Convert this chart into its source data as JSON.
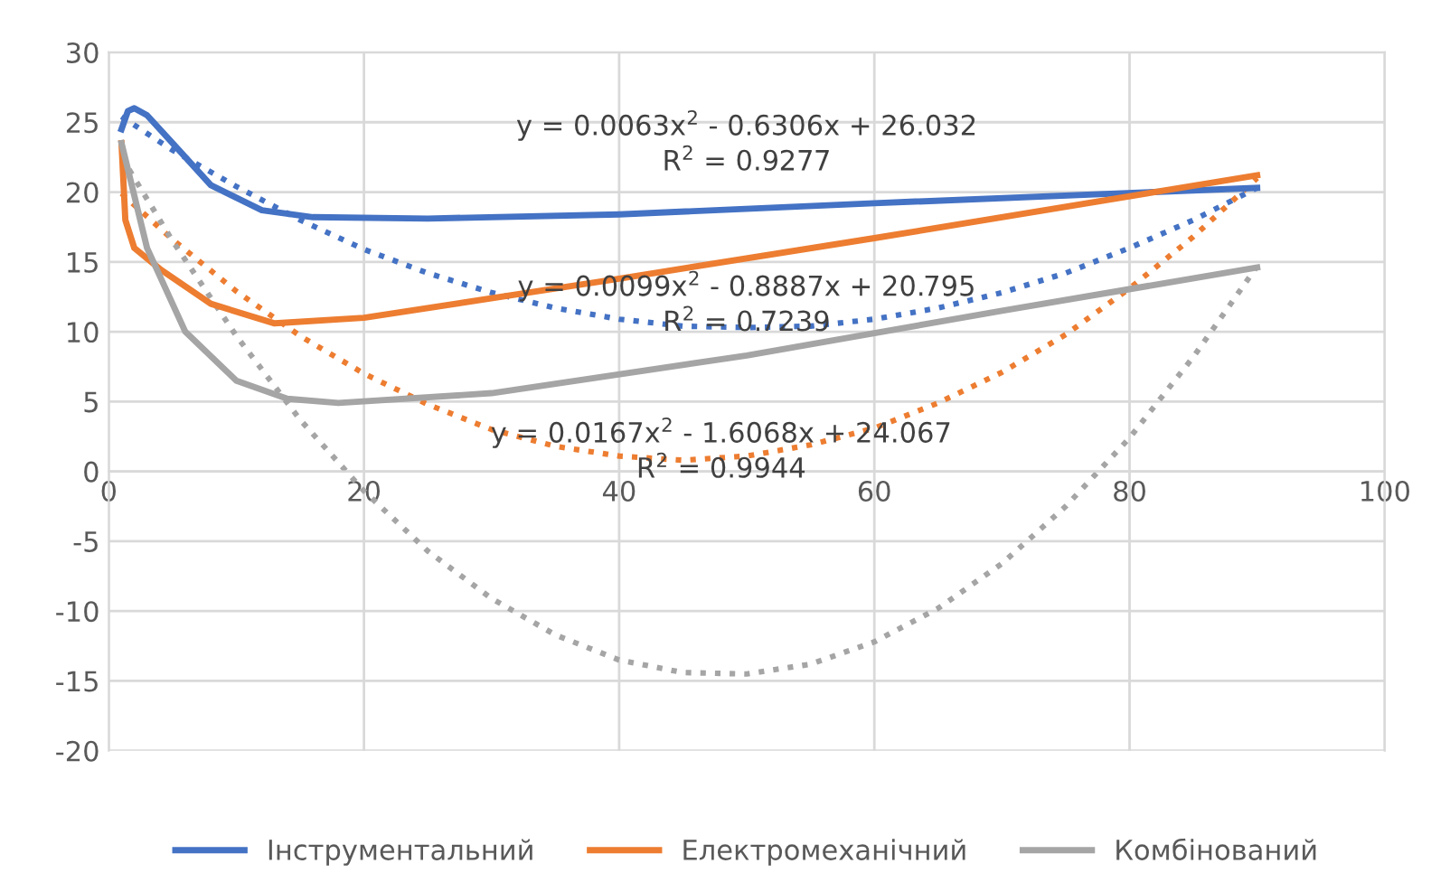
{
  "chart_data": {
    "type": "line",
    "xlim": [
      0,
      100
    ],
    "xticks": [
      0,
      20,
      40,
      60,
      80,
      100
    ],
    "ylim": [
      -20,
      30
    ],
    "yticks": [
      -20,
      -15,
      -10,
      -5,
      0,
      5,
      10,
      15,
      20,
      25,
      30
    ],
    "grid": true,
    "legend": "bottom",
    "marker": "none",
    "annotations": [
      "y = 0.0063x$^{2}$ - 0.6306x + 26.032\nR$^{2}$ = 0.9277",
      "y = 0.0099x$^{2}$ - 0.8887x + 20.795\nR$^{2}$ = 0.7239",
      "y = 0.0167x$^{2}$ - 1.6068x + 24.067\nR$^{2}$ = 0.9944"
    ],
    "series": [
      {
        "name": "Інструментальний",
        "color": "#4472c4",
        "line_style": "solid",
        "x": [
          1,
          1.5,
          2,
          3,
          5,
          8,
          12,
          16,
          25,
          40,
          60,
          90
        ],
        "values": [
          24.5,
          25.8,
          26,
          25.5,
          23.5,
          20.5,
          18.7,
          18.2,
          18.1,
          18.4,
          19.2,
          20.3
        ]
      },
      {
        "name": "Електромеханічний",
        "color": "#ed7d31",
        "line_style": "solid",
        "x": [
          1,
          1.3,
          2,
          4,
          8,
          13,
          20,
          40,
          60,
          90
        ],
        "values": [
          23.5,
          18,
          16,
          14.5,
          12,
          10.6,
          11,
          13.8,
          16.7,
          21.2
        ]
      },
      {
        "name": "Комбінований",
        "color": "#a5a5a5",
        "line_style": "solid",
        "x": [
          1,
          3,
          6,
          10,
          14,
          18,
          30,
          50,
          70,
          90
        ],
        "values": [
          23.5,
          16,
          10,
          6.5,
          5.2,
          4.9,
          5.6,
          8.3,
          11.5,
          14.6
        ]
      },
      {
        "color": "#4472c4",
        "line_style": "dotted",
        "x": [
          1,
          5,
          10,
          15,
          20,
          25,
          30,
          35,
          40,
          45,
          50,
          55,
          60,
          65,
          70,
          75,
          80,
          85,
          90
        ],
        "values": [
          25.4,
          23,
          20.4,
          18,
          15.9,
          14.2,
          12.8,
          11.7,
          10.9,
          10.4,
          10.3,
          10.4,
          10.9,
          11.7,
          12.8,
          14.2,
          16,
          18,
          20.3
        ]
      },
      {
        "color": "#ed7d31",
        "line_style": "dotted",
        "x": [
          1,
          5,
          10,
          15,
          20,
          25,
          30,
          35,
          40,
          45,
          50,
          55,
          60,
          65,
          70,
          75,
          80,
          85,
          90
        ],
        "values": [
          19.9,
          16.6,
          12.9,
          9.7,
          7,
          4.8,
          3,
          1.8,
          1.1,
          0.8,
          1.1,
          1.9,
          3.1,
          4.9,
          7.1,
          9.8,
          13.1,
          16.8,
          21
        ]
      },
      {
        "color": "#a5a5a5",
        "line_style": "dotted",
        "x": [
          1,
          5,
          10,
          15,
          20,
          25,
          30,
          35,
          40,
          45,
          50,
          55,
          60,
          65,
          70,
          75,
          80,
          85,
          90
        ],
        "values": [
          22.5,
          16.5,
          9.7,
          3.7,
          -1.4,
          -5.7,
          -9.1,
          -11.7,
          -13.5,
          -14.4,
          -14.5,
          -13.8,
          -12.2,
          -9.8,
          -6.6,
          -2.5,
          2.4,
          8.2,
          14.7
        ]
      }
    ]
  }
}
